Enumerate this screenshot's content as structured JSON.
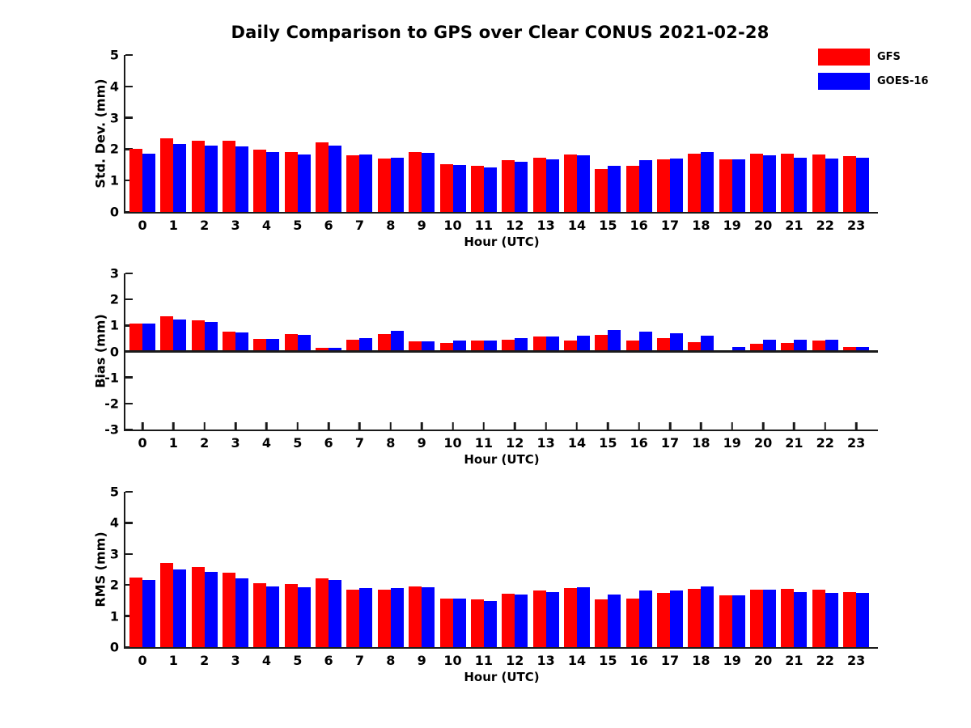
{
  "title": "Daily Comparison to GPS over Clear CONUS 2021-02-28",
  "colors": {
    "gfs": "#ff0000",
    "goes16": "#0000ff",
    "axis": "#1a1a1a",
    "text": "#000000",
    "background": "#ffffff"
  },
  "legend": {
    "position": "top-right",
    "items": [
      {
        "label": "GFS",
        "color": "#ff0000"
      },
      {
        "label": "GOES-16",
        "color": "#0000ff"
      }
    ]
  },
  "chart_data": [
    {
      "type": "bar",
      "title": "",
      "ylabel": "Std. Dev. (mm)",
      "xlabel": "Hour (UTC)",
      "ylim": [
        0,
        5
      ],
      "yticks": [
        0,
        1,
        2,
        3,
        4,
        5
      ],
      "grid": false,
      "categories": [
        "0",
        "1",
        "2",
        "3",
        "4",
        "5",
        "6",
        "7",
        "8",
        "9",
        "10",
        "11",
        "12",
        "13",
        "14",
        "15",
        "16",
        "17",
        "18",
        "19",
        "20",
        "21",
        "22",
        "23"
      ],
      "series": [
        {
          "name": "GFS",
          "color": "#ff0000",
          "values": [
            2.02,
            2.35,
            2.28,
            2.27,
            1.99,
            1.92,
            2.21,
            1.8,
            1.7,
            1.9,
            1.53,
            1.46,
            1.64,
            1.73,
            1.82,
            1.36,
            1.47,
            1.67,
            1.86,
            1.67,
            1.85,
            1.86,
            1.83,
            1.78
          ]
        },
        {
          "name": "GOES-16",
          "color": "#0000ff",
          "values": [
            1.86,
            2.16,
            2.11,
            2.09,
            1.9,
            1.82,
            2.12,
            1.84,
            1.73,
            1.88,
            1.5,
            1.41,
            1.6,
            1.67,
            1.8,
            1.46,
            1.65,
            1.71,
            1.9,
            1.67,
            1.8,
            1.72,
            1.7,
            1.73
          ]
        }
      ]
    },
    {
      "type": "bar",
      "title": "",
      "ylabel": "Bias (mm)",
      "xlabel": "Hour (UTC)",
      "ylim": [
        -3,
        3
      ],
      "yticks": [
        -3,
        -2,
        -1,
        0,
        1,
        2,
        3
      ],
      "grid": false,
      "categories": [
        "0",
        "1",
        "2",
        "3",
        "4",
        "5",
        "6",
        "7",
        "8",
        "9",
        "10",
        "11",
        "12",
        "13",
        "14",
        "15",
        "16",
        "17",
        "18",
        "19",
        "20",
        "21",
        "22",
        "23"
      ],
      "series": [
        {
          "name": "GFS",
          "color": "#ff0000",
          "values": [
            1.07,
            1.36,
            1.2,
            0.77,
            0.48,
            0.67,
            0.13,
            0.46,
            0.67,
            0.39,
            0.32,
            0.41,
            0.45,
            0.58,
            0.43,
            0.65,
            0.43,
            0.52,
            0.37,
            0.03,
            0.31,
            0.34,
            0.41,
            0.18
          ]
        },
        {
          "name": "GOES-16",
          "color": "#0000ff",
          "values": [
            1.07,
            1.23,
            1.14,
            0.73,
            0.48,
            0.64,
            0.13,
            0.52,
            0.79,
            0.39,
            0.41,
            0.41,
            0.52,
            0.58,
            0.62,
            0.81,
            0.76,
            0.69,
            0.6,
            0.16,
            0.45,
            0.44,
            0.44,
            0.18
          ]
        }
      ]
    },
    {
      "type": "bar",
      "title": "",
      "ylabel": "RMS (mm)",
      "xlabel": "Hour (UTC)",
      "ylim": [
        0,
        5
      ],
      "yticks": [
        0,
        1,
        2,
        3,
        4,
        5
      ],
      "grid": false,
      "categories": [
        "0",
        "1",
        "2",
        "3",
        "4",
        "5",
        "6",
        "7",
        "8",
        "9",
        "10",
        "11",
        "12",
        "13",
        "14",
        "15",
        "16",
        "17",
        "18",
        "19",
        "20",
        "21",
        "22",
        "23"
      ],
      "series": [
        {
          "name": "GFS",
          "color": "#ff0000",
          "values": [
            2.25,
            2.7,
            2.58,
            2.4,
            2.07,
            2.04,
            2.21,
            1.86,
            1.85,
            1.96,
            1.57,
            1.54,
            1.71,
            1.81,
            1.9,
            1.54,
            1.57,
            1.75,
            1.88,
            1.66,
            1.85,
            1.88,
            1.85,
            1.78
          ]
        },
        {
          "name": "GOES-16",
          "color": "#0000ff",
          "values": [
            2.17,
            2.5,
            2.43,
            2.22,
            1.96,
            1.94,
            2.15,
            1.9,
            1.89,
            1.93,
            1.57,
            1.48,
            1.69,
            1.77,
            1.93,
            1.69,
            1.83,
            1.83,
            1.95,
            1.67,
            1.85,
            1.78,
            1.75,
            1.75
          ]
        }
      ]
    }
  ]
}
